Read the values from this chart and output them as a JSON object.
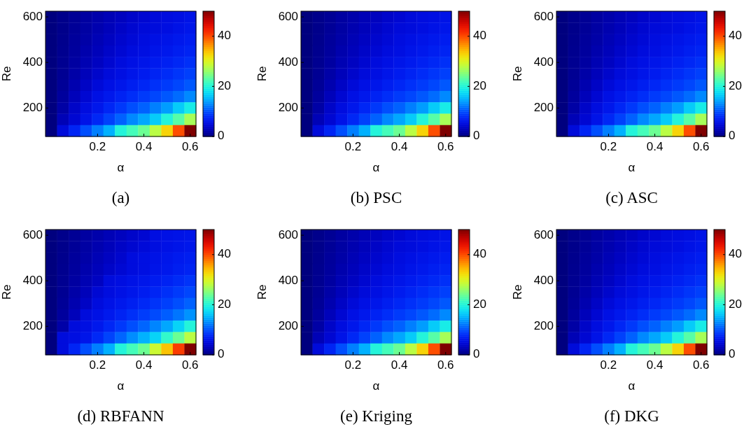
{
  "chart_data": [
    {
      "type": "heatmap",
      "title": "(a)",
      "xlabel": "α",
      "ylabel": "Re",
      "categories": [
        null,
        null,
        null,
        null,
        "0.2",
        null,
        null,
        null,
        "0.4",
        null,
        null,
        null,
        "0.6"
      ],
      "y_categories": [
        "600",
        null,
        null,
        null,
        "400",
        null,
        null,
        null,
        "200",
        null,
        null
      ],
      "clim": [
        0,
        50
      ],
      "cticks": [
        0,
        20,
        40
      ],
      "cells": [
        [
          0,
          0.6,
          1.1,
          1.7,
          2.2,
          2.8,
          3.3,
          3.9,
          4.4,
          5,
          5.3,
          5.6,
          6
        ],
        [
          0,
          0.6,
          1.2,
          1.8,
          2.4,
          3,
          3.7,
          4.3,
          4.9,
          5.1,
          5.5,
          5.9,
          6.3
        ],
        [
          0,
          0.7,
          1.4,
          2,
          2.7,
          3.4,
          4.1,
          4.7,
          5.3,
          5.7,
          6.1,
          6.5,
          6.9
        ],
        [
          0,
          0.8,
          1.5,
          2.3,
          3,
          3.8,
          4.5,
          5.2,
          5.6,
          6.1,
          6.5,
          7,
          7.4
        ],
        [
          0,
          0.9,
          1.7,
          2.6,
          3.4,
          4.3,
          5.2,
          5.7,
          6.2,
          6.7,
          7.2,
          7.7,
          8.2
        ],
        [
          0,
          1,
          2,
          3,
          4,
          5,
          5.6,
          6.2,
          6.8,
          7.4,
          8,
          8.6,
          9.2
        ],
        [
          0,
          1.2,
          2.4,
          3.6,
          4.8,
          5.7,
          6.3,
          7,
          7.6,
          8.3,
          8.9,
          9.6,
          10.5
        ],
        [
          0,
          1.5,
          3,
          4.4,
          5.7,
          6.5,
          7.3,
          8.1,
          8.9,
          9.6,
          10.5,
          11.5,
          13
        ],
        [
          0,
          1.9,
          3.8,
          5.3,
          6.4,
          7.6,
          8.8,
          10,
          11,
          12.5,
          14,
          16.5,
          19
        ],
        [
          0,
          2.8,
          4.4,
          6,
          7.7,
          9.3,
          11,
          13,
          14.5,
          16.5,
          20,
          23,
          27
        ],
        [
          0,
          5,
          7.5,
          10,
          12.5,
          15,
          20,
          22,
          24,
          28,
          33,
          40,
          50
        ]
      ]
    },
    {
      "type": "heatmap",
      "title": "(b) PSC",
      "xlabel": "α",
      "ylabel": "Re",
      "categories": [
        null,
        null,
        null,
        null,
        "0.2",
        null,
        null,
        null,
        "0.4",
        null,
        null,
        null,
        "0.6"
      ],
      "y_categories": [
        "600",
        null,
        null,
        null,
        "400",
        null,
        null,
        null,
        "200",
        null,
        null
      ],
      "clim": [
        0,
        50
      ],
      "cticks": [
        0,
        20,
        40
      ],
      "cells": [
        [
          0,
          0.6,
          1.1,
          1.7,
          2.2,
          2.8,
          3.3,
          3.9,
          4.4,
          5,
          5.3,
          5.6,
          6
        ],
        [
          0,
          0.6,
          1.2,
          1.8,
          2.4,
          3,
          3.7,
          4.3,
          4.9,
          5.1,
          5.5,
          5.9,
          6.3
        ],
        [
          0,
          0.7,
          1.4,
          2,
          2.7,
          3.4,
          4.1,
          4.7,
          5.3,
          5.7,
          6.1,
          6.5,
          6.9
        ],
        [
          0,
          0.8,
          1.5,
          2.3,
          3,
          3.8,
          4.5,
          5.2,
          5.6,
          6.1,
          6.5,
          7,
          7.4
        ],
        [
          0,
          0.9,
          1.7,
          2.6,
          3.4,
          4.3,
          5.2,
          5.7,
          6.2,
          6.7,
          7.2,
          7.7,
          8.2
        ],
        [
          0,
          1,
          2,
          3,
          4,
          5,
          5.6,
          6.2,
          6.8,
          7.4,
          8,
          8.6,
          9.2
        ],
        [
          0,
          1.2,
          2.4,
          3.6,
          4.8,
          5.7,
          6.3,
          7,
          7.6,
          8.3,
          8.9,
          9.6,
          10.5
        ],
        [
          0,
          1.5,
          3,
          4.4,
          5.7,
          6.5,
          7.3,
          8.1,
          8.9,
          9.6,
          10.5,
          11.5,
          13
        ],
        [
          0,
          1.9,
          3.8,
          5.3,
          6.4,
          7.6,
          8.8,
          10,
          11,
          12.5,
          14,
          16.5,
          19
        ],
        [
          0,
          2.8,
          4.4,
          6,
          7.7,
          9.3,
          11,
          13,
          14.5,
          16.5,
          20,
          23,
          27
        ],
        [
          0,
          5,
          7.5,
          10,
          12.5,
          15,
          20,
          22,
          24,
          28,
          33,
          40,
          50
        ]
      ]
    },
    {
      "type": "heatmap",
      "title": "(c) ASC",
      "xlabel": "α",
      "ylabel": "Re",
      "categories": [
        null,
        null,
        null,
        null,
        "0.2",
        null,
        null,
        null,
        "0.4",
        null,
        null,
        null,
        "0.6"
      ],
      "y_categories": [
        "600",
        null,
        null,
        null,
        "400",
        null,
        null,
        null,
        "200",
        null,
        null
      ],
      "clim": [
        0,
        50
      ],
      "cticks": [
        0,
        20,
        40
      ],
      "cells": [
        [
          0,
          0.6,
          1.1,
          1.7,
          2.2,
          2.8,
          3.3,
          3.9,
          4.4,
          5,
          5.3,
          5.6,
          6
        ],
        [
          0,
          0.6,
          1.2,
          1.8,
          2.4,
          3,
          3.7,
          4.3,
          4.9,
          5.1,
          5.5,
          5.9,
          6.3
        ],
        [
          0,
          0.7,
          1.4,
          2,
          2.7,
          3.4,
          4.1,
          4.7,
          5.3,
          5.7,
          6.1,
          6.5,
          6.9
        ],
        [
          0,
          0.8,
          1.5,
          2.3,
          3,
          3.8,
          4.5,
          5.2,
          5.6,
          6.1,
          6.5,
          7,
          7.4
        ],
        [
          0,
          0.9,
          1.7,
          2.6,
          3.4,
          4.3,
          5.2,
          5.7,
          6.2,
          6.7,
          7.2,
          7.7,
          8.2
        ],
        [
          0,
          1,
          2,
          3,
          4,
          5,
          5.6,
          6.2,
          6.8,
          7.4,
          8,
          8.6,
          9.2
        ],
        [
          0,
          1.2,
          2.4,
          3.6,
          4.8,
          5.7,
          6.3,
          7,
          7.6,
          8.3,
          8.9,
          9.6,
          10.5
        ],
        [
          0,
          1.5,
          3,
          4.4,
          5.7,
          6.5,
          7.3,
          8.1,
          8.9,
          9.6,
          10.5,
          11.5,
          13
        ],
        [
          0,
          1.9,
          3.8,
          5.3,
          6.4,
          7.6,
          8.8,
          10,
          11,
          12.5,
          14,
          16.5,
          19
        ],
        [
          0,
          2.8,
          4.4,
          6,
          7.7,
          9.3,
          11,
          13,
          14.5,
          16.5,
          20,
          23,
          27
        ],
        [
          0,
          5,
          7.5,
          10,
          12.5,
          15,
          20,
          22,
          24,
          28,
          33,
          40,
          50
        ]
      ]
    },
    {
      "type": "heatmap",
      "title": "(d) RBFANN",
      "xlabel": "α",
      "ylabel": "Re",
      "categories": [
        null,
        null,
        null,
        null,
        "0.2",
        null,
        null,
        null,
        "0.4",
        null,
        null,
        null,
        "0.6"
      ],
      "y_categories": [
        "600",
        null,
        null,
        null,
        "400",
        null,
        null,
        null,
        "200",
        null,
        null
      ],
      "clim": [
        0,
        50
      ],
      "cticks": [
        0,
        20,
        40
      ],
      "cells": [
        [
          0,
          0.6,
          1.1,
          1.7,
          2.2,
          2.8,
          3.3,
          3.9,
          4.4,
          5.5,
          5.8,
          6,
          6.2
        ],
        [
          0,
          0.6,
          1.2,
          1.8,
          2.4,
          3,
          3.7,
          4.3,
          4.9,
          5.4,
          5.8,
          6.1,
          6.4
        ],
        [
          0,
          0.7,
          1.4,
          2,
          2.7,
          3.4,
          4.1,
          5.2,
          5.6,
          5.9,
          6.3,
          6.7,
          7
        ],
        [
          0,
          0.8,
          1.5,
          2.3,
          3,
          3.8,
          4.5,
          5.2,
          5.6,
          6.1,
          6.5,
          7,
          7.4
        ],
        [
          0,
          0.9,
          1.7,
          2.6,
          3.4,
          5.1,
          5.5,
          5.9,
          6.3,
          6.8,
          7.3,
          7.9,
          8.5
        ],
        [
          0,
          1,
          2,
          3,
          4.5,
          5.3,
          5.8,
          6.3,
          6.9,
          7.5,
          8.2,
          8.9,
          9.6
        ],
        [
          0,
          1.2,
          2.4,
          3.6,
          5.2,
          5.9,
          6.5,
          7.1,
          7.8,
          8.5,
          9.2,
          10,
          11
        ],
        [
          0,
          1.5,
          3,
          5.1,
          5.8,
          6.6,
          7.4,
          8.2,
          9,
          9.8,
          10.8,
          12,
          13.5
        ],
        [
          0,
          2,
          5.1,
          5.6,
          6.5,
          7.6,
          8.8,
          10,
          11.2,
          12.8,
          14.5,
          17,
          20
        ],
        [
          0,
          5.1,
          5.5,
          6.2,
          7.8,
          9.4,
          11.2,
          13.2,
          15,
          17,
          21,
          24,
          28
        ],
        [
          0,
          5.1,
          7.5,
          10,
          12.5,
          15,
          20,
          22,
          24,
          29,
          34,
          41,
          50
        ]
      ]
    },
    {
      "type": "heatmap",
      "title": "(e) Kriging",
      "xlabel": "α",
      "ylabel": "Re",
      "categories": [
        null,
        null,
        null,
        null,
        "0.2",
        null,
        null,
        null,
        "0.4",
        null,
        null,
        null,
        "0.6"
      ],
      "y_categories": [
        "600",
        null,
        null,
        null,
        "400",
        null,
        null,
        null,
        "200",
        null,
        null
      ],
      "clim": [
        0,
        50
      ],
      "cticks": [
        0,
        20,
        40
      ],
      "cells": [
        [
          0,
          0.6,
          1.1,
          1.7,
          2.2,
          2.8,
          3.3,
          3.9,
          4.4,
          5,
          5.3,
          5.6,
          6
        ],
        [
          0,
          0.6,
          1.2,
          1.8,
          2.4,
          3,
          3.7,
          4.3,
          4.9,
          5.1,
          5.5,
          5.9,
          6.3
        ],
        [
          0,
          0.7,
          1.4,
          2,
          2.7,
          3.4,
          4.1,
          4.7,
          5.3,
          5.7,
          6.1,
          6.5,
          6.9
        ],
        [
          0,
          0.8,
          1.5,
          2.3,
          3,
          3.8,
          4.5,
          5.2,
          5.6,
          6.1,
          6.5,
          7,
          7.4
        ],
        [
          0,
          0.9,
          1.7,
          2.6,
          3.4,
          4.3,
          5.2,
          5.7,
          6.2,
          6.7,
          7.2,
          7.7,
          8.2
        ],
        [
          0,
          1,
          2,
          3,
          4,
          5,
          5.6,
          6.2,
          6.8,
          7.4,
          8,
          8.6,
          9.2
        ],
        [
          0,
          1.2,
          2.4,
          3.6,
          4.8,
          5.7,
          6.3,
          7,
          7.6,
          8.3,
          8.9,
          9.6,
          10.5
        ],
        [
          0,
          1.5,
          3,
          4.4,
          5.7,
          6.5,
          7.3,
          8.1,
          8.9,
          9.6,
          10.5,
          11.5,
          13
        ],
        [
          0,
          1.9,
          3.8,
          5.3,
          6.4,
          7.6,
          8.8,
          10,
          11,
          12.5,
          14,
          16.5,
          19
        ],
        [
          0,
          2.8,
          4.4,
          6,
          7.7,
          9.3,
          11,
          13,
          14.5,
          16.5,
          20,
          23,
          27
        ],
        [
          0,
          5,
          7.5,
          10,
          12.5,
          15,
          20,
          22,
          24,
          28,
          33,
          40,
          50
        ]
      ]
    },
    {
      "type": "heatmap",
      "title": "(f) DKG",
      "xlabel": "α",
      "ylabel": "Re",
      "categories": [
        null,
        null,
        null,
        null,
        "0.2",
        null,
        null,
        null,
        "0.4",
        null,
        null,
        null,
        "0.6"
      ],
      "y_categories": [
        "600",
        null,
        null,
        null,
        "400",
        null,
        null,
        null,
        "200",
        null,
        null
      ],
      "clim": [
        0,
        50
      ],
      "cticks": [
        0,
        20,
        40
      ],
      "cells": [
        [
          0,
          0.6,
          1.1,
          1.7,
          2.2,
          2.8,
          3.3,
          3.9,
          4.4,
          5,
          5.3,
          5.6,
          6
        ],
        [
          0,
          0.6,
          1.2,
          1.8,
          2.4,
          3,
          3.7,
          4.3,
          4.9,
          5.1,
          5.5,
          5.9,
          6.3
        ],
        [
          0,
          0.7,
          1.4,
          2,
          2.7,
          3.4,
          4.1,
          4.7,
          5.3,
          5.7,
          6.1,
          6.5,
          6.9
        ],
        [
          0,
          0.8,
          1.5,
          2.3,
          3,
          3.8,
          4.5,
          5.2,
          5.6,
          6.1,
          6.5,
          7,
          7.4
        ],
        [
          0,
          0.9,
          1.7,
          2.6,
          3.4,
          4.3,
          5.2,
          5.7,
          6.2,
          6.7,
          7.2,
          7.7,
          8.2
        ],
        [
          0,
          1,
          2,
          3,
          4,
          5,
          5.6,
          6.2,
          6.8,
          7.4,
          8,
          8.6,
          9.2
        ],
        [
          0,
          1.2,
          2.4,
          3.6,
          4.8,
          5.7,
          6.3,
          7,
          7.6,
          8.3,
          8.9,
          9.6,
          10.5
        ],
        [
          0,
          1.5,
          3,
          4.4,
          5.7,
          6.5,
          7.3,
          8.1,
          8.9,
          9.6,
          10.5,
          11.5,
          13
        ],
        [
          0,
          1.9,
          3.8,
          5.3,
          6.4,
          7.6,
          8.8,
          10,
          11,
          12.5,
          14,
          16.5,
          19
        ],
        [
          0,
          2.8,
          4.4,
          6,
          7.7,
          9.3,
          11,
          13,
          14.5,
          16.5,
          20,
          23,
          27
        ],
        [
          0,
          5,
          7.5,
          10,
          12.5,
          15,
          20,
          22,
          24,
          28,
          33,
          40,
          50
        ]
      ]
    }
  ]
}
